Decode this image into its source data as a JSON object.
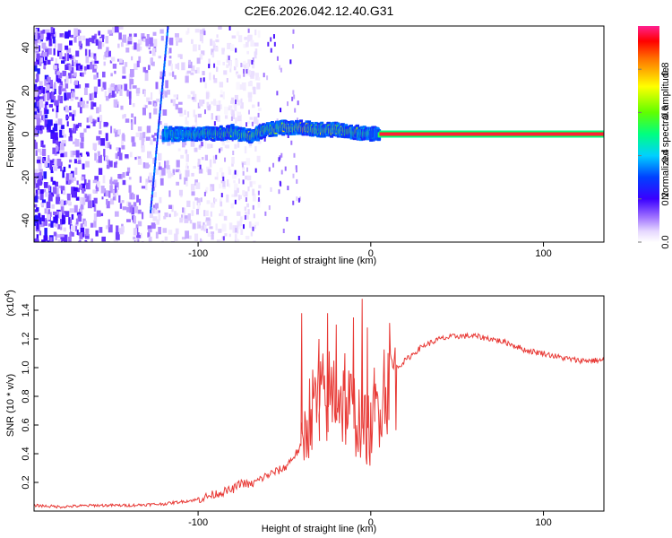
{
  "title": "C2E6.2026.042.12.40.G31",
  "chart_data": [
    {
      "type": "heatmap",
      "name": "spectrogram",
      "xlabel": "Height of straight line (km)",
      "ylabel": "Frequency (Hz)",
      "xlim": [
        -195,
        135
      ],
      "ylim": [
        -50,
        50
      ],
      "xticks": [
        -100,
        0,
        100
      ],
      "xtick_labels": [
        "-100",
        "0",
        "100"
      ],
      "yticks": [
        -40,
        -20,
        0,
        20,
        40
      ],
      "ytick_labels": [
        "-40",
        "-20",
        "0",
        "20",
        "40"
      ],
      "colorbar": {
        "label": "Normalized spectral amplitude",
        "range": [
          0,
          1
        ],
        "ticks": [
          0.0,
          0.2,
          0.4,
          0.6,
          0.8
        ],
        "tick_labels": [
          "0.0",
          "0.2",
          "0.4",
          "0.6",
          "0.8"
        ]
      },
      "ridge": {
        "x": [
          -120,
          -110,
          -100,
          -90,
          -80,
          -70,
          -60,
          -50,
          -40,
          -30,
          -20,
          -10,
          0,
          5,
          135
        ],
        "y": [
          0,
          0,
          0,
          0,
          1,
          -1,
          2,
          3,
          3,
          2,
          2,
          1,
          0,
          0,
          0
        ],
        "amplitude": [
          0.45,
          0.55,
          0.6,
          0.65,
          0.7,
          0.72,
          0.75,
          0.8,
          0.85,
          0.8,
          0.75,
          0.7,
          0.6,
          0.5,
          1.0
        ]
      }
    },
    {
      "type": "line",
      "name": "snr",
      "xlabel": "Height of straight line (km)",
      "ylabel": "SNR (10 * v/v)",
      "yscale_label": "(x10",
      "yscale_exp": "4",
      "yscale_close": ")",
      "xlim": [
        -195,
        135
      ],
      "ylim": [
        0,
        1.5
      ],
      "xticks": [
        -100,
        0,
        100
      ],
      "xtick_labels": [
        "-100",
        "0",
        "100"
      ],
      "yticks": [
        0.2,
        0.4,
        0.6,
        0.8,
        1.0,
        1.2,
        1.4
      ],
      "ytick_labels": [
        "0.2",
        "0.4",
        "0.6",
        "0.8",
        "1.0",
        "1.2",
        "1.4"
      ],
      "color": "#e83a36",
      "series": [
        {
          "name": "SNR",
          "x": [
            -195,
            -180,
            -160,
            -140,
            -120,
            -100,
            -90,
            -80,
            -75,
            -70,
            -60,
            -50,
            -40,
            -35,
            -30,
            -25,
            -20,
            -15,
            -10,
            -5,
            0,
            5,
            10,
            15,
            20,
            25,
            30,
            40,
            50,
            60,
            70,
            80,
            90,
            100,
            110,
            120,
            135
          ],
          "y": [
            0.04,
            0.03,
            0.04,
            0.04,
            0.05,
            0.08,
            0.12,
            0.15,
            0.2,
            0.18,
            0.25,
            0.3,
            0.45,
            0.7,
            0.75,
            0.8,
            0.85,
            0.75,
            0.7,
            0.6,
            0.55,
            0.8,
            0.95,
            1.0,
            1.05,
            1.1,
            1.15,
            1.2,
            1.22,
            1.22,
            1.2,
            1.17,
            1.12,
            1.1,
            1.07,
            1.05,
            1.05
          ],
          "spikes": [
            [
              -40,
              1.38
            ],
            [
              -30,
              1.2
            ],
            [
              -25,
              1.38
            ],
            [
              -20,
              1.3
            ],
            [
              -15,
              1.1
            ],
            [
              -10,
              1.35
            ],
            [
              -5,
              1.48
            ],
            [
              -2,
              1.28
            ],
            [
              2,
              1.0
            ]
          ]
        }
      ]
    }
  ]
}
